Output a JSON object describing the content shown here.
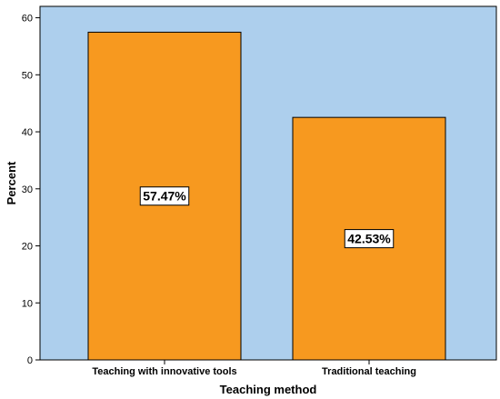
{
  "chart_data": {
    "type": "bar",
    "title": "",
    "xlabel": "Teaching method",
    "ylabel": "Percent",
    "categories": [
      "Teaching with innovative tools",
      "Traditional teaching"
    ],
    "values": [
      57.47,
      42.53
    ],
    "data_labels": [
      "57.47%",
      "42.53%"
    ],
    "ylim": [
      0,
      62
    ],
    "yticks": [
      0,
      10,
      20,
      30,
      40,
      50,
      60
    ],
    "grid": false,
    "legend": "none",
    "colors": {
      "bar_fill": "#F7991F",
      "bar_stroke": "#000000",
      "plot_background": "#ADCFED",
      "label_box_fill": "#FFFFFF"
    }
  }
}
